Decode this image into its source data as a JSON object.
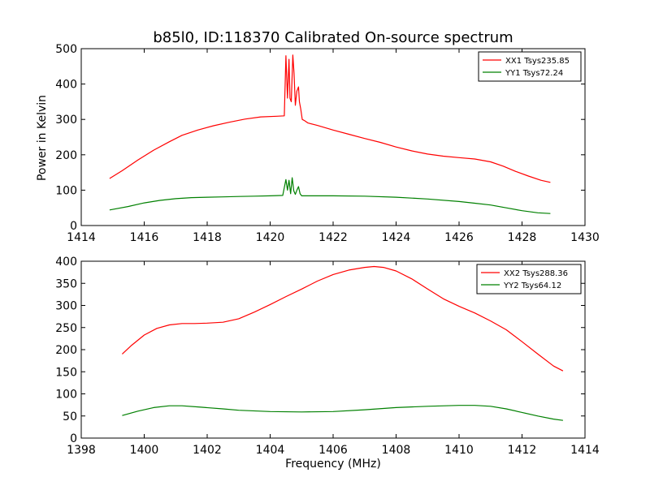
{
  "figure": {
    "title": "b85l0, ID:118370 Calibrated On-source spectrum",
    "ylabel": "Power in Kelvin",
    "xlabel": "Frequency (MHz)"
  },
  "chart_data": [
    {
      "type": "line",
      "title": "b85l0, ID:118370 Calibrated On-source spectrum",
      "xlabel": "",
      "ylabel": "Power in Kelvin",
      "xlim": [
        1414,
        1430
      ],
      "ylim": [
        0,
        500
      ],
      "xticks": [
        "1414",
        "1416",
        "1418",
        "1420",
        "1422",
        "1424",
        "1426",
        "1428",
        "1430"
      ],
      "yticks": [
        "0",
        "100",
        "200",
        "300",
        "400",
        "500"
      ],
      "grid": false,
      "legend": "top-right",
      "series": [
        {
          "name": "XX1 Tsys235.85",
          "color": "#ff0000",
          "x": [
            1414.9,
            1415.3,
            1415.8,
            1416.3,
            1416.8,
            1417.2,
            1417.7,
            1418.2,
            1418.7,
            1419.2,
            1419.7,
            1420.2,
            1420.45,
            1420.5,
            1420.55,
            1420.6,
            1420.63,
            1420.67,
            1420.72,
            1420.76,
            1420.8,
            1420.85,
            1420.9,
            1420.93,
            1420.97,
            1421.02,
            1421.1,
            1421.2,
            1421.5,
            1422.0,
            1422.5,
            1423.0,
            1423.5,
            1424.0,
            1424.5,
            1425.0,
            1425.5,
            1426.0,
            1426.5,
            1427.0,
            1427.4,
            1427.8,
            1428.2,
            1428.6,
            1428.9
          ],
          "values": [
            133,
            155,
            185,
            213,
            237,
            255,
            270,
            282,
            292,
            301,
            307,
            309,
            310,
            480,
            360,
            470,
            360,
            350,
            482,
            430,
            340,
            380,
            392,
            350,
            330,
            300,
            296,
            290,
            283,
            270,
            258,
            246,
            235,
            222,
            211,
            202,
            196,
            192,
            188,
            180,
            168,
            153,
            140,
            128,
            122
          ]
        },
        {
          "name": "YY1 Tsys72.24",
          "color": "#008000",
          "x": [
            1414.9,
            1415.5,
            1416.0,
            1416.5,
            1417.0,
            1417.5,
            1418.0,
            1418.5,
            1419.0,
            1419.5,
            1420.0,
            1420.4,
            1420.5,
            1420.55,
            1420.6,
            1420.65,
            1420.7,
            1420.75,
            1420.8,
            1420.85,
            1420.9,
            1420.95,
            1421.0,
            1421.2,
            1421.5,
            1422.0,
            1423.0,
            1424.0,
            1425.0,
            1426.0,
            1426.5,
            1427.0,
            1427.5,
            1428.0,
            1428.5,
            1428.9
          ],
          "values": [
            44,
            54,
            64,
            71,
            76,
            79,
            80,
            81,
            82,
            83,
            84,
            85,
            130,
            100,
            128,
            90,
            135,
            98,
            88,
            100,
            110,
            90,
            84,
            84,
            84,
            84,
            83,
            80,
            75,
            68,
            63,
            58,
            50,
            42,
            36,
            34
          ]
        }
      ]
    },
    {
      "type": "line",
      "title": "",
      "xlabel": "Frequency (MHz)",
      "ylabel": "",
      "xlim": [
        1398,
        1414
      ],
      "ylim": [
        0,
        400
      ],
      "xticks": [
        "1398",
        "1400",
        "1402",
        "1404",
        "1406",
        "1408",
        "1410",
        "1412",
        "1414"
      ],
      "yticks": [
        "0",
        "50",
        "100",
        "150",
        "200",
        "250",
        "300",
        "350",
        "400"
      ],
      "grid": false,
      "legend": "top-right",
      "series": [
        {
          "name": "XX2 Tsys288.36",
          "color": "#ff0000",
          "x": [
            1399.3,
            1399.6,
            1400.0,
            1400.4,
            1400.8,
            1401.2,
            1401.6,
            1402.0,
            1402.5,
            1403.0,
            1403.5,
            1404.0,
            1404.5,
            1405.0,
            1405.5,
            1406.0,
            1406.5,
            1407.0,
            1407.3,
            1407.6,
            1408.0,
            1408.5,
            1409.0,
            1409.5,
            1410.0,
            1410.5,
            1411.0,
            1411.5,
            1412.0,
            1412.5,
            1413.0,
            1413.3
          ],
          "values": [
            190,
            210,
            233,
            248,
            256,
            259,
            259,
            260,
            262,
            270,
            285,
            302,
            320,
            337,
            355,
            370,
            380,
            386,
            388,
            386,
            378,
            360,
            337,
            315,
            298,
            283,
            265,
            245,
            218,
            190,
            163,
            152
          ]
        },
        {
          "name": "YY2 Tsys64.12",
          "color": "#008000",
          "x": [
            1399.3,
            1399.8,
            1400.3,
            1400.8,
            1401.2,
            1401.8,
            1402.5,
            1403.0,
            1404.0,
            1405.0,
            1406.0,
            1407.0,
            1408.0,
            1409.0,
            1410.0,
            1410.5,
            1411.0,
            1411.5,
            1412.0,
            1412.5,
            1413.0,
            1413.3
          ],
          "values": [
            51,
            61,
            69,
            73,
            73,
            70,
            66,
            63,
            60,
            59,
            60,
            64,
            69,
            72,
            74,
            74,
            72,
            66,
            58,
            50,
            43,
            40
          ]
        }
      ]
    }
  ]
}
